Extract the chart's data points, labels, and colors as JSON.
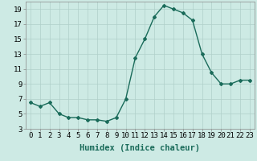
{
  "x": [
    0,
    1,
    2,
    3,
    4,
    5,
    6,
    7,
    8,
    9,
    10,
    11,
    12,
    13,
    14,
    15,
    16,
    17,
    18,
    19,
    20,
    21,
    22,
    23
  ],
  "y": [
    6.5,
    6.0,
    6.5,
    5.0,
    4.5,
    4.5,
    4.2,
    4.2,
    4.0,
    4.5,
    7.0,
    12.5,
    15.0,
    18.0,
    19.5,
    19.0,
    18.5,
    17.5,
    13.0,
    10.5,
    9.0,
    9.0,
    9.5,
    9.5
  ],
  "line_color": "#1a6b5a",
  "marker": "D",
  "marker_size": 2.0,
  "bg_color": "#cdeae4",
  "grid_color": "#b0cfc9",
  "xlabel": "Humidex (Indice chaleur)",
  "ylim": [
    3,
    20
  ],
  "xlim": [
    -0.5,
    23.5
  ],
  "yticks": [
    3,
    5,
    7,
    9,
    11,
    13,
    15,
    17,
    19
  ],
  "xticks": [
    0,
    1,
    2,
    3,
    4,
    5,
    6,
    7,
    8,
    9,
    10,
    11,
    12,
    13,
    14,
    15,
    16,
    17,
    18,
    19,
    20,
    21,
    22,
    23
  ],
  "xlabel_fontsize": 7.5,
  "tick_fontsize": 6.5
}
